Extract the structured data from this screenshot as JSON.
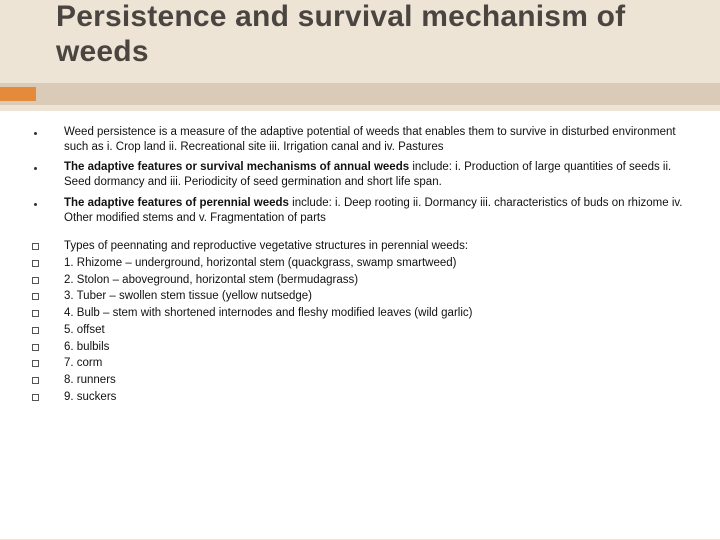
{
  "title": "Persistence and survival mechanism of weeds",
  "para1": {
    "text": "Weed persistence is a measure of the adaptive potential of weeds that enables them to survive in disturbed environment such as  i. Crop land  ii. Recreational site iii. Irrigation canal and  iv. Pastures"
  },
  "para2": {
    "bold": "The adaptive features or survival mechanisms of annual  weeds",
    "rest": " include: i. Production of large quantities of seeds ii. Seed dormancy and iii.  Periodicity of seed germination and short life span."
  },
  "para3": {
    "bold": "The adaptive features of perennial weeds",
    "rest": " include: i. Deep rooting ii. Dormancy iii. characteristics of  buds on rhizome iv. Other modified stems  and v. Fragmentation of parts"
  },
  "list": {
    "heading": " Types of   peennating and reproductive vegetative structures  in perennial weeds:",
    "items": [
      "1. Rhizome – underground, horizontal stem (quackgrass, swamp smartweed)",
      "2. Stolon – aboveground, horizontal stem (bermudagrass)",
      "3. Tuber – swollen stem tissue (yellow nutsedge)",
      "4. Bulb – stem with shortened internodes and fleshy modified leaves (wild garlic)",
      "5. offset",
      "6. bulbils",
      "7. corm",
      "8. runners",
      "9. suckers"
    ]
  },
  "colors": {
    "background": "#eee4d6",
    "bar": "#d9cbb8",
    "accent": "#e48a3b",
    "content_bg": "#ffffff",
    "title_color": "#4a4540"
  }
}
